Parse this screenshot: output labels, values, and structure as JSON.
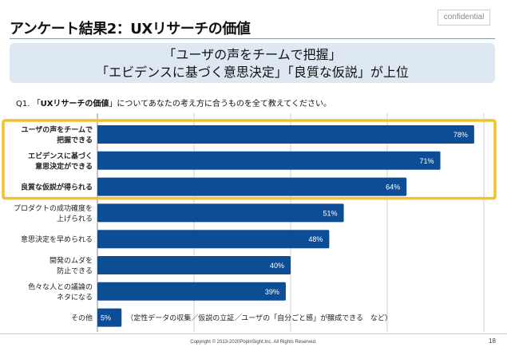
{
  "header": {
    "title": "アンケート結果2：UXリサーチの価値",
    "confidential_label": "confidential"
  },
  "banner": {
    "line1": "「ユーザの声をチームで把握」",
    "line2": "「エビデンスに基づく意思決定」「良質な仮説」が上位"
  },
  "question": {
    "prefix": "Q1. 「",
    "bold": "UXリサーチの価値",
    "suffix": "」についてあなたの考え方に合うものを全て教えてください。"
  },
  "colors": {
    "bar": "#0d4d96",
    "highlight": "#f2c12e",
    "grid": "#d0d0d0",
    "banner_bg": "#dde8f2"
  },
  "chart_data": {
    "type": "bar",
    "orientation": "horizontal",
    "categories": [
      [
        "ユーザの声をチームで",
        "把握できる"
      ],
      [
        "エビデンスに基づく",
        "意思決定ができる"
      ],
      [
        "良質な仮説が得られる"
      ],
      [
        "プロダクトの成功確度を",
        "上げられる"
      ],
      [
        "意思決定を早められる"
      ],
      [
        "開発のムダを",
        "防止できる"
      ],
      [
        "色々な人との議論の",
        "ネタになる"
      ],
      [
        "その他"
      ]
    ],
    "values": [
      78,
      71,
      64,
      51,
      48,
      40,
      39,
      5
    ],
    "value_labels": [
      "78%",
      "71%",
      "64%",
      "51%",
      "48%",
      "40%",
      "39%",
      "5%"
    ],
    "xlim": [
      0,
      80
    ],
    "grid_step": 20,
    "grid": true,
    "highlighted_rows": [
      0,
      1,
      2
    ],
    "annotation": "（定性データの収集／仮説の立証／ユーザの「自分ごと感」が醸成できる　など）"
  },
  "footer": {
    "copyright": "Copyright © 2013-2020PopInSight,Inc.  All Rights Reserved.",
    "page_number": "18"
  }
}
